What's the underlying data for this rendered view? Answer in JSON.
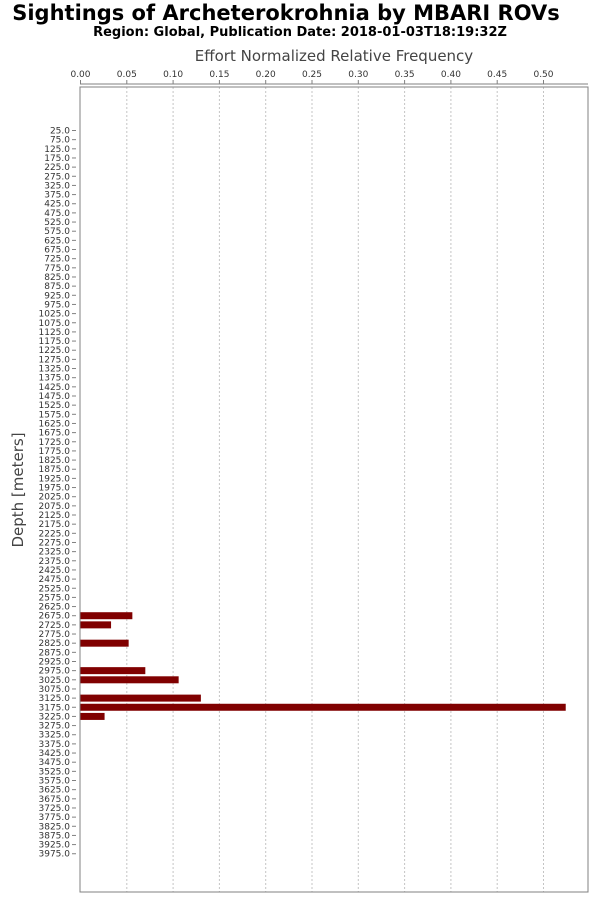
{
  "chart_data": {
    "type": "bar",
    "orientation": "horizontal",
    "title": "Sightings of Archeterokrohnia by MBARI ROVs",
    "subtitle": "Region: Global, Publication Date: 2018-01-03T18:19:32Z",
    "xlabel": "Effort Normalized Relative Frequency",
    "ylabel": "Depth [meters]",
    "xlim": [
      0,
      0.55
    ],
    "x_ticks": [
      "0.00",
      "0.05",
      "0.10",
      "0.15",
      "0.20",
      "0.25",
      "0.30",
      "0.35",
      "0.40",
      "0.45",
      "0.50"
    ],
    "x_axis_position": "top",
    "grid": true,
    "bar_color": "#800000",
    "categories": [
      "25.0",
      "75.0",
      "125.0",
      "175.0",
      "225.0",
      "275.0",
      "325.0",
      "375.0",
      "425.0",
      "475.0",
      "525.0",
      "575.0",
      "625.0",
      "675.0",
      "725.0",
      "775.0",
      "825.0",
      "875.0",
      "925.0",
      "975.0",
      "1025.0",
      "1075.0",
      "1125.0",
      "1175.0",
      "1225.0",
      "1275.0",
      "1325.0",
      "1375.0",
      "1425.0",
      "1475.0",
      "1525.0",
      "1575.0",
      "1625.0",
      "1675.0",
      "1725.0",
      "1775.0",
      "1825.0",
      "1875.0",
      "1925.0",
      "1975.0",
      "2025.0",
      "2075.0",
      "2125.0",
      "2175.0",
      "2225.0",
      "2275.0",
      "2325.0",
      "2375.0",
      "2425.0",
      "2475.0",
      "2525.0",
      "2575.0",
      "2625.0",
      "2675.0",
      "2725.0",
      "2775.0",
      "2825.0",
      "2875.0",
      "2925.0",
      "2975.0",
      "3025.0",
      "3075.0",
      "3125.0",
      "3175.0",
      "3225.0",
      "3275.0",
      "3325.0",
      "3375.0",
      "3425.0",
      "3475.0",
      "3525.0",
      "3575.0",
      "3625.0",
      "3675.0",
      "3725.0",
      "3775.0",
      "3825.0",
      "3875.0",
      "3925.0",
      "3975.0"
    ],
    "values": [
      0,
      0,
      0,
      0,
      0,
      0,
      0,
      0,
      0,
      0,
      0,
      0,
      0,
      0,
      0,
      0,
      0,
      0,
      0,
      0,
      0,
      0,
      0,
      0,
      0,
      0,
      0,
      0,
      0,
      0,
      0,
      0,
      0,
      0,
      0,
      0,
      0,
      0,
      0,
      0,
      0,
      0,
      0,
      0,
      0,
      0,
      0,
      0,
      0,
      0,
      0,
      0,
      0,
      0.056,
      0.033,
      0,
      0.052,
      0,
      0,
      0.07,
      0.106,
      0,
      0.13,
      0.524,
      0.026,
      0,
      0,
      0,
      0,
      0,
      0,
      0,
      0,
      0,
      0,
      0,
      0,
      0,
      0,
      0
    ]
  }
}
